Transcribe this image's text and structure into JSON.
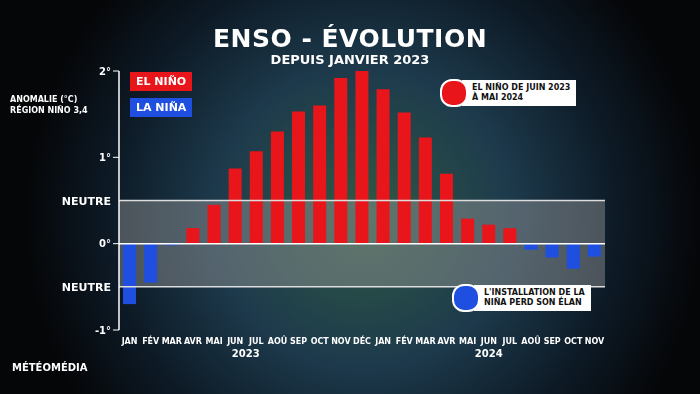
{
  "chart_data": {
    "type": "bar",
    "title": "ENSO - ÉVOLUTION",
    "subtitle": "DEPUIS JANVIER 2023",
    "y_label": [
      "ANOMALIE (°C)",
      "RÉGION NIÑO 3,4"
    ],
    "source": "MÉTÉOMÉDIA",
    "categories": [
      "JAN",
      "FÉV",
      "MAR",
      "AVR",
      "MAI",
      "JUN",
      "JUL",
      "AOÛ",
      "SEP",
      "OCT",
      "NOV",
      "DÉC",
      "JAN",
      "FÉV",
      "MAR",
      "AVR",
      "MAI",
      "JUN",
      "JUL",
      "AOÛ",
      "SEP",
      "OCT",
      "NOV"
    ],
    "year_groups": [
      {
        "label": "2023",
        "count": 12
      },
      {
        "label": "2024",
        "count": 11
      }
    ],
    "series": [
      {
        "name": "EL NIÑO",
        "color": "#e8151b",
        "values": [
          null,
          null,
          null,
          0.18,
          0.45,
          0.87,
          1.07,
          1.3,
          1.53,
          1.6,
          1.92,
          2.0,
          1.79,
          1.52,
          1.23,
          0.81,
          0.29,
          0.22,
          0.18,
          null,
          null,
          null,
          null
        ]
      },
      {
        "name": "LA NIÑA",
        "color": "#1f4fe0",
        "values": [
          -0.7,
          -0.45,
          -0.02,
          null,
          null,
          null,
          null,
          null,
          null,
          null,
          null,
          null,
          null,
          null,
          null,
          null,
          null,
          null,
          null,
          -0.07,
          -0.16,
          -0.29,
          -0.15
        ]
      }
    ],
    "stacked": true,
    "ylim": [
      -1,
      2
    ],
    "yticks": [
      {
        "value": -1,
        "label": "-1°"
      },
      {
        "value": 0,
        "label": "0°"
      },
      {
        "value": 1,
        "label": "1°"
      },
      {
        "value": 2,
        "label": "2°"
      }
    ],
    "grid": false,
    "neutral_band": {
      "range": [
        -0.5,
        0.5
      ],
      "label": "NEUTRE"
    },
    "annotations": [
      {
        "text": [
          "EL NIÑO DE JUIN 2023",
          "À MAI 2024"
        ],
        "color": "#e8151b"
      },
      {
        "text": [
          "L'INSTALLATION DE LA",
          "NIÑA PERD SON ÉLAN"
        ],
        "color": "#1f4fe0"
      }
    ]
  }
}
